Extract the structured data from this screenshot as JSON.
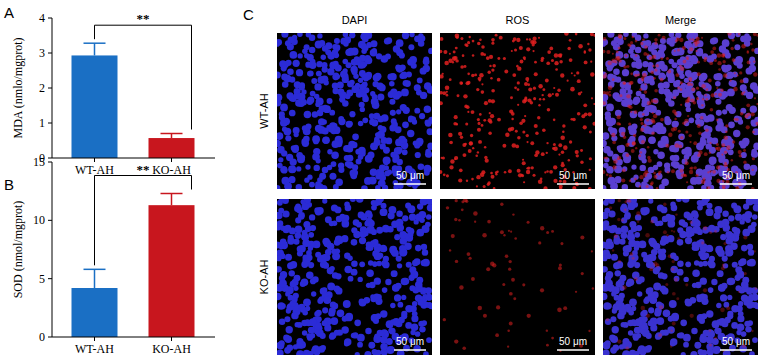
{
  "chart_data": [
    {
      "type": "bar",
      "panel_label": "A",
      "y_label": "MDA (nmlo/mgprot)",
      "categories": [
        "WT-AH",
        "KO-AH"
      ],
      "values": [
        2.93,
        0.57
      ],
      "errors": [
        0.35,
        0.13
      ],
      "colors": [
        "#1a6fc4",
        "#c8161e"
      ],
      "ylim": [
        0,
        4
      ],
      "yticks": [
        0,
        1,
        2,
        3,
        4
      ],
      "annotation": "**"
    },
    {
      "type": "bar",
      "panel_label": "B",
      "y_label": "SOD (nmol/mgprot)",
      "categories": [
        "WT-AH",
        "KO-AH"
      ],
      "values": [
        4.2,
        11.3
      ],
      "errors": [
        1.6,
        1.0
      ],
      "colors": [
        "#1a6fc4",
        "#c8161e"
      ],
      "ylim": [
        0,
        15
      ],
      "yticks": [
        0,
        5,
        10,
        15
      ],
      "annotation": "**"
    }
  ],
  "panel_c": {
    "panel_label": "C",
    "columns": [
      "DAPI",
      "ROS",
      "Merge"
    ],
    "rows": [
      "WT-AH",
      "KO-AH"
    ],
    "scale_bar": "50 μm"
  }
}
